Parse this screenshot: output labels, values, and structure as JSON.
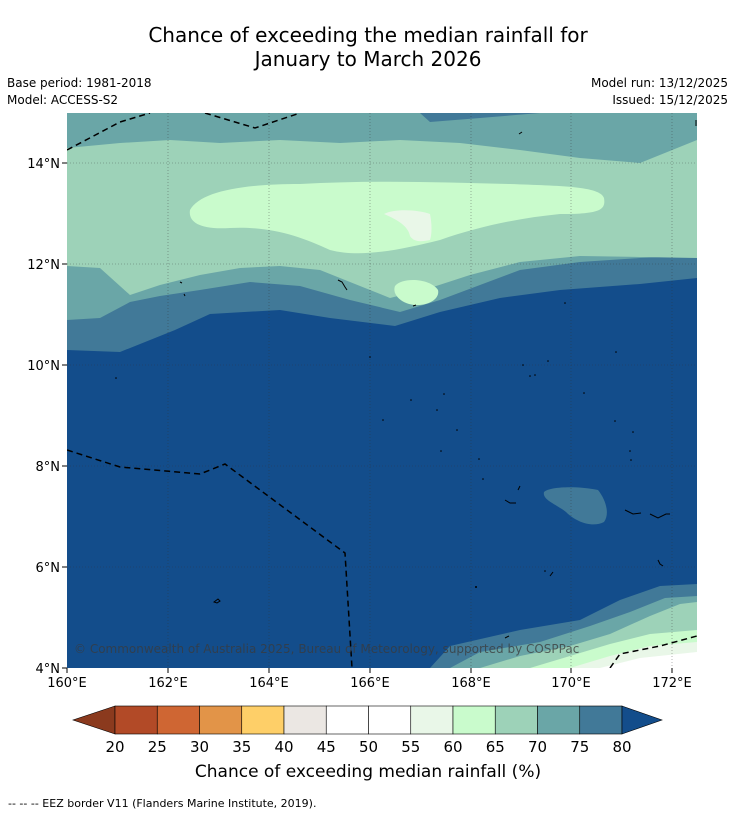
{
  "header": {
    "title_line1": "Chance of exceeding the median rainfall for",
    "title_line2": "January to March 2026",
    "base_period": "Base period: 1981-2018",
    "model": "Model: ACCESS-S2",
    "model_run": "Model run: 13/12/2025",
    "issued": "Issued: 15/12/2025"
  },
  "map": {
    "lon_ticks": [
      "160°E",
      "162°E",
      "164°E",
      "166°E",
      "168°E",
      "170°E",
      "172°E"
    ],
    "lat_ticks": [
      "14°N",
      "12°N",
      "10°N",
      "8°N",
      "6°N",
      "4°N"
    ],
    "copyright": "© Commonwealth of Australia 2025, Bureau of Meteorology, supported by COSPPac"
  },
  "colorbar": {
    "ticks": [
      "20",
      "25",
      "30",
      "35",
      "40",
      "45",
      "50",
      "55",
      "60",
      "65",
      "70",
      "75",
      "80"
    ],
    "colors": [
      "#8b3a1e",
      "#b24a27",
      "#cf6633",
      "#e29448",
      "#fecf68",
      "#ebe7e3",
      "#ffffff",
      "#ffffff",
      "#e9f7e8",
      "#c9fbcc",
      "#9dd2b8",
      "#6aa6a7",
      "#417998",
      "#134d8b"
    ],
    "label": "Chance of exceeding median rainfall (%)"
  },
  "footer": {
    "legend_line": "--  --  -- EEZ border V11 (Flanders Marine Institute, 2019)."
  }
}
